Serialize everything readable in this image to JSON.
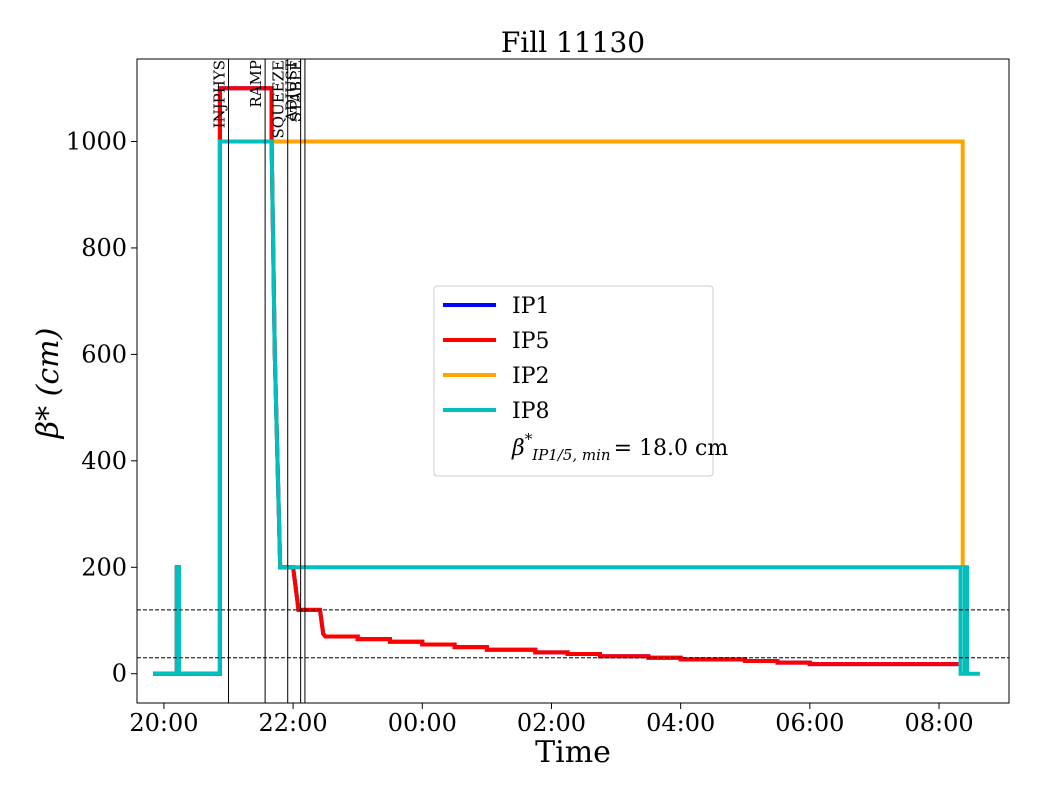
{
  "chart_data": {
    "type": "line",
    "title": "Fill 11130",
    "xlabel": "Time",
    "ylabel": "β* (cm)",
    "x_range": [
      "19:35",
      "09:05"
    ],
    "ylim": [
      -55,
      1155
    ],
    "x_ticks": [
      "20:00",
      "22:00",
      "00:00",
      "02:00",
      "04:00",
      "06:00",
      "08:00"
    ],
    "y_ticks": [
      0,
      200,
      400,
      600,
      800,
      1000
    ],
    "grid": false,
    "legend_position": "center",
    "legend_extra": {
      "prefix": "β",
      "sup": "*",
      "sub": "IP1/5, min",
      "value": "= 18.0 cm"
    },
    "modes": [
      {
        "label": "INJPHYS",
        "time": "21:00"
      },
      {
        "label": "RAMP",
        "time": "21:34"
      },
      {
        "label": "SQUEEZE",
        "time": "21:55"
      },
      {
        "label": "ADJUST",
        "time": "22:07"
      },
      {
        "label": "STABLE",
        "time": "22:11"
      }
    ],
    "reference_lines": [
      120,
      30
    ],
    "series": [
      {
        "name": "IP1",
        "color": "#0000ff",
        "points": [
          [
            "19:50",
            0
          ],
          [
            "20:12",
            0
          ],
          [
            "20:12",
            200
          ],
          [
            "20:14",
            200
          ],
          [
            "20:14",
            0
          ],
          [
            "20:52",
            0
          ],
          [
            "20:52",
            1100
          ],
          [
            "21:40",
            1100
          ],
          [
            "21:40",
            1000
          ],
          [
            "21:43",
            600
          ],
          [
            "21:48",
            200
          ],
          [
            "22:00",
            200
          ],
          [
            "22:05",
            120
          ],
          [
            "22:25",
            120
          ],
          [
            "22:28",
            75
          ],
          [
            "22:30",
            70
          ],
          [
            "23:00",
            70
          ],
          [
            "23:00",
            65
          ],
          [
            "23:30",
            65
          ],
          [
            "23:30",
            60
          ],
          [
            "00:00",
            60
          ],
          [
            "00:00",
            55
          ],
          [
            "00:30",
            55
          ],
          [
            "00:30",
            50
          ],
          [
            "01:00",
            50
          ],
          [
            "01:00",
            45
          ],
          [
            "01:45",
            45
          ],
          [
            "01:45",
            40
          ],
          [
            "02:15",
            40
          ],
          [
            "02:15",
            37
          ],
          [
            "02:45",
            37
          ],
          [
            "02:45",
            33
          ],
          [
            "03:30",
            33
          ],
          [
            "03:30",
            30
          ],
          [
            "04:00",
            30
          ],
          [
            "04:00",
            27
          ],
          [
            "05:00",
            27
          ],
          [
            "05:00",
            24
          ],
          [
            "05:30",
            24
          ],
          [
            "05:30",
            21
          ],
          [
            "06:00",
            21
          ],
          [
            "06:00",
            18
          ],
          [
            "08:18",
            18
          ]
        ]
      },
      {
        "name": "IP5",
        "color": "#ff0000",
        "points": [
          [
            "19:50",
            0
          ],
          [
            "20:12",
            0
          ],
          [
            "20:12",
            200
          ],
          [
            "20:14",
            200
          ],
          [
            "20:14",
            0
          ],
          [
            "20:52",
            0
          ],
          [
            "20:52",
            1100
          ],
          [
            "21:40",
            1100
          ],
          [
            "21:40",
            1000
          ],
          [
            "21:43",
            600
          ],
          [
            "21:48",
            200
          ],
          [
            "22:00",
            200
          ],
          [
            "22:05",
            120
          ],
          [
            "22:25",
            120
          ],
          [
            "22:28",
            75
          ],
          [
            "22:30",
            70
          ],
          [
            "23:00",
            70
          ],
          [
            "23:00",
            65
          ],
          [
            "23:30",
            65
          ],
          [
            "23:30",
            60
          ],
          [
            "00:00",
            60
          ],
          [
            "00:00",
            55
          ],
          [
            "00:30",
            55
          ],
          [
            "00:30",
            50
          ],
          [
            "01:00",
            50
          ],
          [
            "01:00",
            45
          ],
          [
            "01:45",
            45
          ],
          [
            "01:45",
            40
          ],
          [
            "02:15",
            40
          ],
          [
            "02:15",
            37
          ],
          [
            "02:45",
            37
          ],
          [
            "02:45",
            33
          ],
          [
            "03:30",
            33
          ],
          [
            "03:30",
            30
          ],
          [
            "04:00",
            30
          ],
          [
            "04:00",
            27
          ],
          [
            "05:00",
            27
          ],
          [
            "05:00",
            24
          ],
          [
            "05:30",
            24
          ],
          [
            "05:30",
            21
          ],
          [
            "06:00",
            21
          ],
          [
            "06:00",
            18
          ],
          [
            "08:18",
            18
          ]
        ]
      },
      {
        "name": "IP2",
        "color": "#ffa500",
        "points": [
          [
            "21:40",
            1000
          ],
          [
            "08:22",
            1000
          ],
          [
            "08:22",
            200
          ]
        ]
      },
      {
        "name": "IP8",
        "color": "#00bfbf",
        "points": [
          [
            "19:50",
            0
          ],
          [
            "20:12",
            0
          ],
          [
            "20:12",
            200
          ],
          [
            "20:14",
            200
          ],
          [
            "20:14",
            0
          ],
          [
            "20:52",
            0
          ],
          [
            "20:52",
            1000
          ],
          [
            "21:40",
            1000
          ],
          [
            "21:43",
            600
          ],
          [
            "21:48",
            200
          ],
          [
            "08:20",
            200
          ],
          [
            "08:20",
            0
          ],
          [
            "08:24",
            0
          ],
          [
            "08:24",
            200
          ],
          [
            "08:26",
            200
          ],
          [
            "08:26",
            0
          ],
          [
            "08:38",
            0
          ]
        ]
      }
    ]
  }
}
